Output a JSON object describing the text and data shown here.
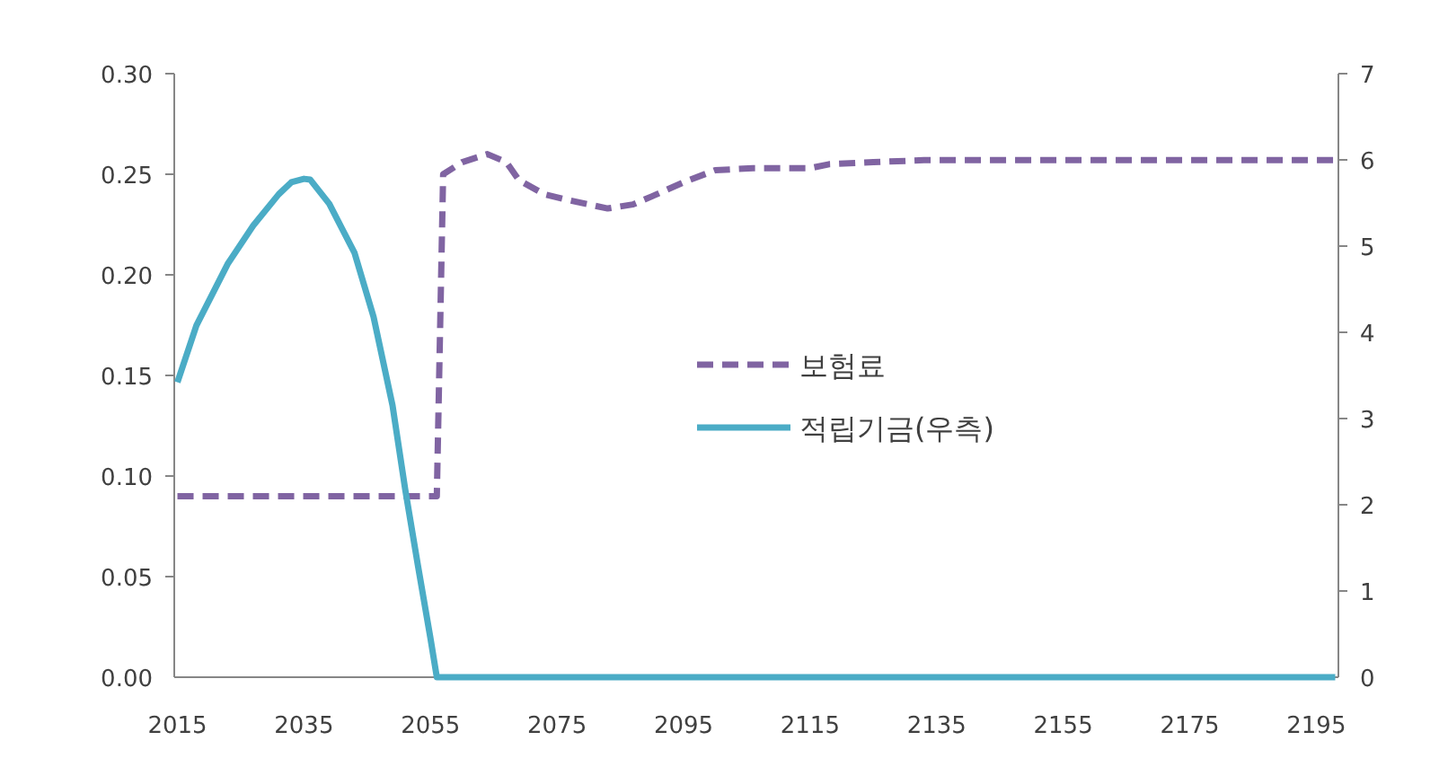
{
  "chart_data": {
    "type": "line",
    "xlim": [
      2014.5,
      2198.5
    ],
    "xticks": [
      2015,
      2035,
      2055,
      2075,
      2095,
      2115,
      2135,
      2155,
      2175,
      2195
    ],
    "ylim": [
      0,
      0.3
    ],
    "yticks": [
      {
        "value": 0,
        "label": "0.00"
      },
      {
        "value": 0.05,
        "label": "0.05"
      },
      {
        "value": 0.1,
        "label": "0.10"
      },
      {
        "value": 0.15,
        "label": "0.15"
      },
      {
        "value": 0.2,
        "label": "0.20"
      },
      {
        "value": 0.25,
        "label": "0.25"
      },
      {
        "value": 0.3,
        "label": "0.30"
      }
    ],
    "y2lim": [
      0,
      7
    ],
    "y2ticks": [
      0,
      1,
      2,
      3,
      4,
      5,
      6,
      7
    ],
    "legend": "center",
    "series": [
      {
        "name": "보험료",
        "color": "#8064a2",
        "line_style": "dashed",
        "x": [
          2015,
          2056,
          2057,
          2060,
          2064,
          2067,
          2069,
          2073,
          2077,
          2083,
          2087,
          2090,
          2095,
          2100,
          2106,
          2115,
          2118,
          2125,
          2133,
          2198
        ],
        "values": [
          0.09,
          0.09,
          0.25,
          0.256,
          0.26,
          0.256,
          0.247,
          0.24,
          0.237,
          0.233,
          0.235,
          0.239,
          0.246,
          0.252,
          0.253,
          0.253,
          0.255,
          0.256,
          0.257,
          0.257
        ]
      },
      {
        "name": "적립기금(우측)",
        "color": "#4bacc6",
        "line_style": "solid",
        "axis": "y2",
        "x": [
          2015,
          2018,
          2023,
          2027,
          2031,
          2033,
          2035,
          2036,
          2039,
          2043,
          2046,
          2049,
          2051,
          2053,
          2055,
          2056,
          2198
        ],
        "values": [
          3.42,
          4.08,
          4.8,
          5.24,
          5.6,
          5.74,
          5.78,
          5.77,
          5.49,
          4.92,
          4.18,
          3.15,
          2.18,
          1.3,
          0.45,
          0,
          0
        ]
      }
    ]
  }
}
